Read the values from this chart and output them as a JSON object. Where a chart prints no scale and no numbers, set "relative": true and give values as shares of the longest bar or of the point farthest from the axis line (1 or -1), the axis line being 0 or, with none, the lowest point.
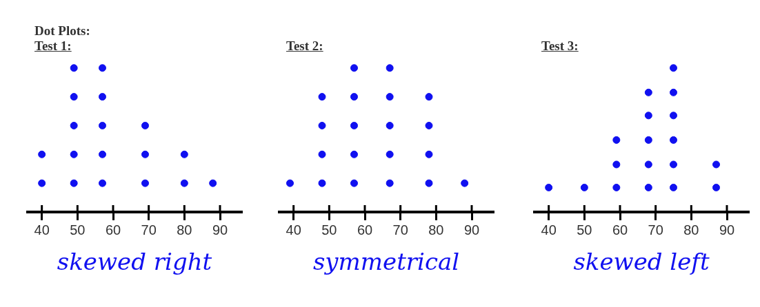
{
  "chart_data": [
    {
      "type": "scatter",
      "title": "Dot Plots:",
      "subtitle": "Test 1:",
      "relative": true,
      "x": [
        40,
        40,
        49,
        49,
        49,
        49,
        49,
        57,
        57,
        57,
        57,
        57,
        69,
        69,
        69,
        80,
        80,
        88
      ],
      "values": [
        0.2,
        0.4,
        0.2,
        0.4,
        0.6,
        0.8,
        1,
        0.2,
        0.4,
        0.6,
        0.8,
        1,
        0.2,
        0.4,
        0.6,
        0.2,
        0.4,
        0.2
      ],
      "color": "#1010f0",
      "marker": "circle",
      "xlim": [
        36,
        96
      ],
      "xticks": [
        40,
        50,
        60,
        70,
        80,
        90
      ],
      "tick_labels": "x",
      "annotations": [
        "skewed right"
      ]
    },
    {
      "type": "scatter",
      "title": "Test 2:",
      "relative": true,
      "x": [
        39,
        48,
        48,
        48,
        48,
        57,
        57,
        57,
        57,
        57,
        67,
        67,
        67,
        67,
        67,
        78,
        78,
        78,
        78,
        88
      ],
      "values": [
        0.2,
        0.2,
        0.4,
        0.6,
        0.8,
        0.2,
        0.4,
        0.6,
        0.8,
        1,
        0.2,
        0.4,
        0.6,
        0.8,
        1,
        0.2,
        0.4,
        0.6,
        0.8,
        0.2
      ],
      "color": "#1010f0",
      "marker": "circle",
      "xlim": [
        36,
        96
      ],
      "xticks": [
        40,
        50,
        60,
        70,
        80,
        90
      ],
      "tick_labels": "x",
      "annotations": [
        "symmetrical"
      ]
    },
    {
      "type": "scatter",
      "title": "Test 3:",
      "relative": true,
      "x": [
        40,
        50,
        59,
        59,
        59,
        68,
        68,
        68,
        68,
        68,
        75,
        75,
        75,
        75,
        75,
        75,
        87,
        87
      ],
      "values": [
        0.17,
        0.17,
        0.17,
        0.33,
        0.5,
        0.17,
        0.33,
        0.5,
        0.67,
        0.83,
        0.17,
        0.33,
        0.5,
        0.67,
        0.83,
        1,
        0.17,
        0.33
      ],
      "color": "#1010f0",
      "marker": "circle",
      "xlim": [
        36,
        96
      ],
      "xticks": [
        40,
        50,
        60,
        70,
        80,
        90
      ],
      "tick_labels": "x",
      "annotations": [
        "skewed left"
      ]
    }
  ]
}
